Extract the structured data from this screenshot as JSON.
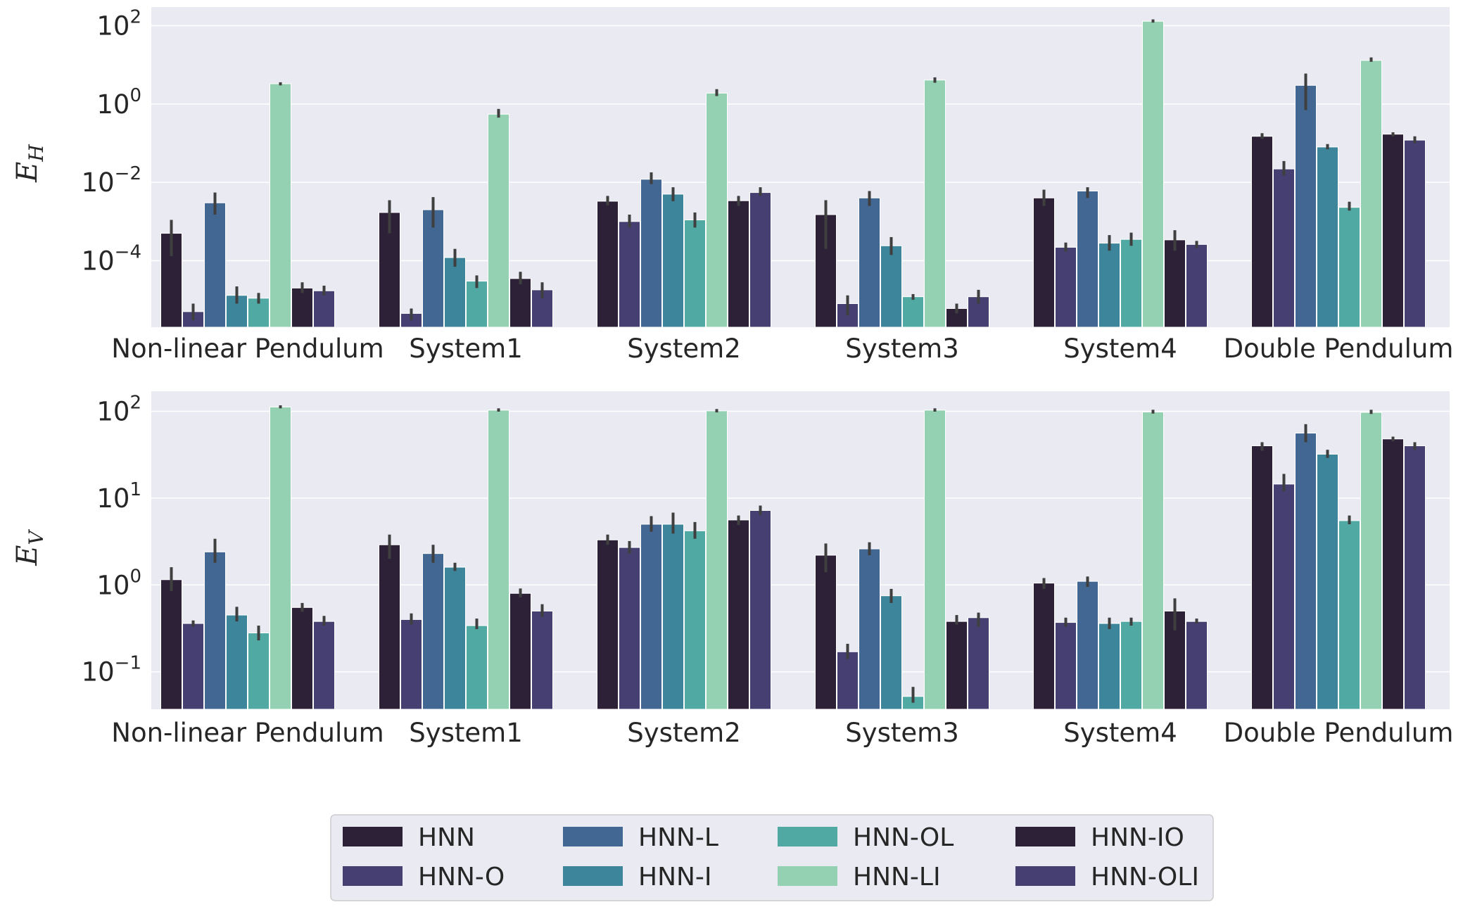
{
  "chart_data": [
    {
      "type": "bar",
      "ylabel": "E",
      "ylabel_sub": "H",
      "yscale": "log",
      "ylim": [
        2e-06,
        300
      ],
      "ytick_values": [
        0.0001,
        0.01,
        1,
        100
      ],
      "ytick_labels": [
        {
          "base": "10",
          "exp": "−4"
        },
        {
          "base": "10",
          "exp": "−2"
        },
        {
          "base": "10",
          "exp": "0"
        },
        {
          "base": "10",
          "exp": "2"
        }
      ],
      "grid": true,
      "categories": [
        "Non-linear Pendulum",
        "System1",
        "System2",
        "System3",
        "System4",
        "Double Pendulum"
      ],
      "series": [
        {
          "name": "HNN",
          "values": [
            0.0005,
            0.0017,
            0.0033,
            0.0015,
            0.004,
            0.15
          ],
          "err_low": [
            0.00013,
            0.0005,
            0.0026,
            0.0002,
            0.0025,
            0.13
          ],
          "err_high": [
            0.0011,
            0.0035,
            0.0045,
            0.0035,
            0.0065,
            0.18
          ]
        },
        {
          "name": "HNN-O",
          "values": [
            5e-06,
            4.5e-06,
            0.001,
            8e-06,
            0.00022,
            0.022
          ],
          "err_low": [
            3e-06,
            3e-06,
            0.0007,
            4e-06,
            0.00017,
            0.015
          ],
          "err_high": [
            8e-06,
            6e-06,
            0.0015,
            1.3e-05,
            0.00029,
            0.035
          ]
        },
        {
          "name": "HNN-L",
          "values": [
            0.003,
            0.002,
            0.012,
            0.004,
            0.006,
            3.0
          ],
          "err_low": [
            0.0015,
            0.0007,
            0.009,
            0.0025,
            0.004,
            0.7
          ],
          "err_high": [
            0.0055,
            0.0042,
            0.018,
            0.006,
            0.0075,
            6.0
          ]
        },
        {
          "name": "HNN-I",
          "values": [
            1.3e-05,
            0.00012,
            0.005,
            0.00024,
            0.00028,
            0.08
          ],
          "err_low": [
            8e-06,
            7e-05,
            0.0033,
            0.00014,
            0.00018,
            0.07
          ],
          "err_high": [
            2.2e-05,
            0.0002,
            0.0075,
            0.0004,
            0.00045,
            0.095
          ]
        },
        {
          "name": "HNN-OL",
          "values": [
            1.1e-05,
            3e-05,
            0.0011,
            1.2e-05,
            0.00035,
            0.0023
          ],
          "err_low": [
            8e-06,
            2e-05,
            0.0007,
            1e-05,
            0.00024,
            0.0019
          ],
          "err_high": [
            1.5e-05,
            4.2e-05,
            0.0017,
            1.4e-05,
            0.00052,
            0.0032
          ]
        },
        {
          "name": "HNN-LI",
          "values": [
            3.3,
            0.55,
            1.9,
            4.1,
            130,
            13
          ],
          "err_low": [
            3.0,
            0.45,
            1.6,
            3.5,
            120,
            12
          ],
          "err_high": [
            3.6,
            0.75,
            2.4,
            4.8,
            145,
            15.5
          ]
        },
        {
          "name": "HNN-IO",
          "values": [
            2e-05,
            3.5e-05,
            0.0034,
            6e-06,
            0.00034,
            0.17
          ],
          "err_low": [
            1.5e-05,
            2.5e-05,
            0.0025,
            4.5e-06,
            0.00018,
            0.15
          ],
          "err_high": [
            2.8e-05,
            5.2e-05,
            0.0045,
            8e-06,
            0.0006,
            0.19
          ]
        },
        {
          "name": "HNN-OLI",
          "values": [
            1.7e-05,
            1.8e-05,
            0.0055,
            1.2e-05,
            0.00026,
            0.12
          ],
          "err_low": [
            1.3e-05,
            1.1e-05,
            0.0045,
            8e-06,
            0.00021,
            0.1
          ],
          "err_high": [
            2.3e-05,
            2.8e-05,
            0.0075,
            1.8e-05,
            0.00032,
            0.15
          ]
        }
      ]
    },
    {
      "type": "bar",
      "ylabel": "E",
      "ylabel_sub": "V",
      "yscale": "log",
      "ylim": [
        0.037,
        170
      ],
      "ytick_values": [
        0.1,
        1,
        10,
        100
      ],
      "ytick_labels": [
        {
          "base": "10",
          "exp": "−1"
        },
        {
          "base": "10",
          "exp": "0"
        },
        {
          "base": "10",
          "exp": "1"
        },
        {
          "base": "10",
          "exp": "2"
        }
      ],
      "grid": true,
      "categories": [
        "Non-linear Pendulum",
        "System1",
        "System2",
        "System3",
        "System4",
        "Double Pendulum"
      ],
      "series": [
        {
          "name": "HNN",
          "values": [
            1.15,
            2.9,
            3.3,
            2.2,
            1.05,
            40
          ],
          "err_low": [
            0.85,
            2.0,
            2.9,
            1.4,
            0.9,
            35
          ],
          "err_high": [
            1.6,
            3.8,
            3.8,
            3.0,
            1.2,
            44
          ]
        },
        {
          "name": "HNN-O",
          "values": [
            0.36,
            0.4,
            2.7,
            0.17,
            0.37,
            14.5
          ],
          "err_low": [
            0.33,
            0.35,
            2.3,
            0.14,
            0.33,
            12
          ],
          "err_high": [
            0.39,
            0.47,
            3.2,
            0.21,
            0.42,
            19
          ]
        },
        {
          "name": "HNN-L",
          "values": [
            2.4,
            2.3,
            5.0,
            2.6,
            1.1,
            56
          ],
          "err_low": [
            1.8,
            1.8,
            4.1,
            2.2,
            0.95,
            44
          ],
          "err_high": [
            3.4,
            2.9,
            6.2,
            3.1,
            1.25,
            71
          ]
        },
        {
          "name": "HNN-I",
          "values": [
            0.45,
            1.6,
            5.0,
            0.75,
            0.36,
            32
          ],
          "err_low": [
            0.38,
            1.45,
            3.9,
            0.62,
            0.31,
            29
          ],
          "err_high": [
            0.56,
            1.8,
            6.8,
            0.9,
            0.42,
            36
          ]
        },
        {
          "name": "HNN-OL",
          "values": [
            0.28,
            0.34,
            4.2,
            0.052,
            0.38,
            5.5
          ],
          "err_low": [
            0.23,
            0.31,
            3.4,
            0.044,
            0.34,
            5.0
          ],
          "err_high": [
            0.34,
            0.41,
            5.3,
            0.067,
            0.42,
            6.3
          ]
        },
        {
          "name": "HNN-LI",
          "values": [
            112,
            103,
            101,
            103,
            98,
            97
          ],
          "err_low": [
            108,
            99,
            97,
            99,
            94,
            93
          ],
          "err_high": [
            117,
            108,
            106,
            108,
            104,
            104
          ]
        },
        {
          "name": "HNN-IO",
          "values": [
            0.55,
            0.8,
            5.6,
            0.38,
            0.5,
            48
          ],
          "err_low": [
            0.49,
            0.72,
            4.9,
            0.35,
            0.3,
            45
          ],
          "err_high": [
            0.62,
            0.91,
            6.3,
            0.45,
            0.7,
            51
          ]
        },
        {
          "name": "HNN-OLI",
          "values": [
            0.38,
            0.5,
            7.2,
            0.42,
            0.38,
            40
          ],
          "err_low": [
            0.34,
            0.43,
            6.4,
            0.33,
            0.36,
            36
          ],
          "err_high": [
            0.44,
            0.6,
            8.2,
            0.48,
            0.41,
            44
          ]
        }
      ]
    }
  ],
  "legend": {
    "placement": "bottom-center",
    "columns": 4,
    "colors": [
      "#2d2138",
      "#463f71",
      "#426792",
      "#3c859a",
      "#50a9a3",
      "#94d1b2",
      "#2d2138",
      "#463f71"
    ]
  },
  "style": {
    "axes_background": "#eaeaf2",
    "grid_color": "#ffffff",
    "errorbar_color": "#3f3f3f",
    "text_color": "#262626"
  }
}
